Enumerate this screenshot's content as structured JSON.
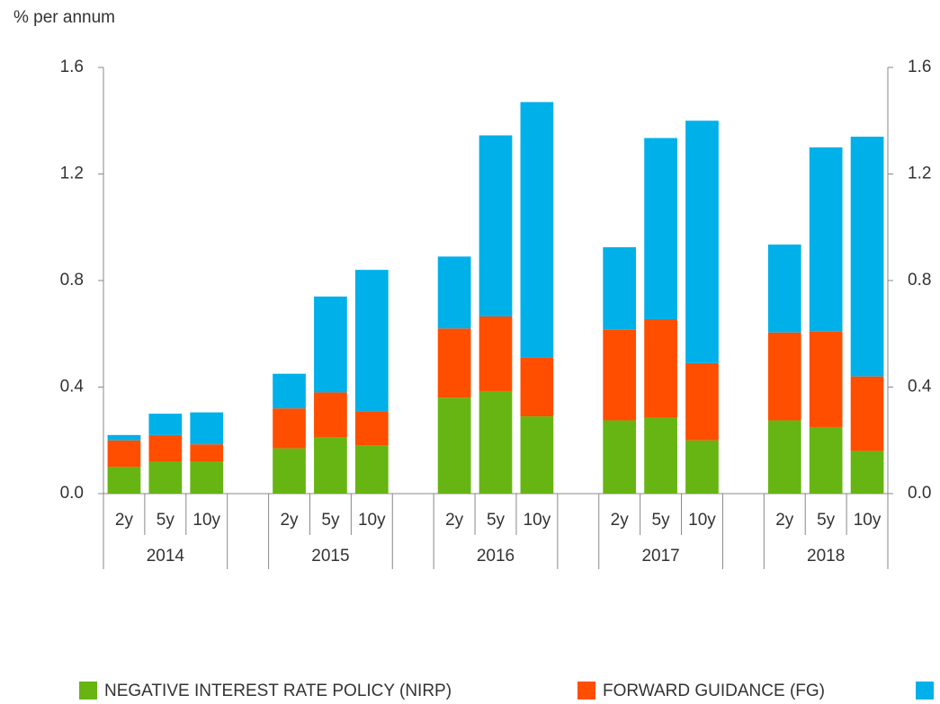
{
  "chart_data": {
    "type": "bar",
    "stacked": true,
    "y_unit_label": "% per annum",
    "categories": [
      "2y",
      "5y",
      "10y",
      null,
      "2y",
      "5y",
      "10y",
      null,
      "2y",
      "5y",
      "10y",
      null,
      "2y",
      "5y",
      "10y",
      null,
      "2y",
      "5y",
      "10y"
    ],
    "groups": [
      "2014",
      "2015",
      "2016",
      "2017",
      "2018"
    ],
    "series": [
      {
        "name": "NEGATIVE INTEREST RATE POLICY (NIRP)",
        "color": "#66b512",
        "values": [
          0.1,
          0.12,
          0.12,
          null,
          0.17,
          0.21,
          0.18,
          null,
          0.36,
          0.385,
          0.29,
          null,
          0.275,
          0.285,
          0.2,
          null,
          0.275,
          0.25,
          0.16
        ]
      },
      {
        "name": "FORWARD GUIDANCE (FG)",
        "color": "#ff4e00",
        "values": [
          0.1,
          0.1,
          0.065,
          null,
          0.15,
          0.17,
          0.13,
          null,
          0.26,
          0.28,
          0.22,
          null,
          0.34,
          0.37,
          0.29,
          null,
          0.33,
          0.36,
          0.28
        ]
      },
      {
        "name": null,
        "color": "#00b0e8",
        "values": [
          0.02,
          0.08,
          0.12,
          null,
          0.13,
          0.36,
          0.53,
          null,
          0.27,
          0.68,
          0.96,
          null,
          0.31,
          0.68,
          0.91,
          null,
          0.33,
          0.69,
          0.9
        ]
      }
    ],
    "ylim": [
      0,
      1.6
    ],
    "yticks": [
      {
        "value": 0,
        "label": "0.0"
      },
      0.4,
      0.8,
      1.2,
      1.6
    ],
    "y2lim": [
      0,
      1.6
    ],
    "y2ticks": [
      {
        "value": 0,
        "label": "0.0"
      },
      0.4,
      0.8,
      1.2,
      1.6
    ],
    "legend": "bottom"
  }
}
